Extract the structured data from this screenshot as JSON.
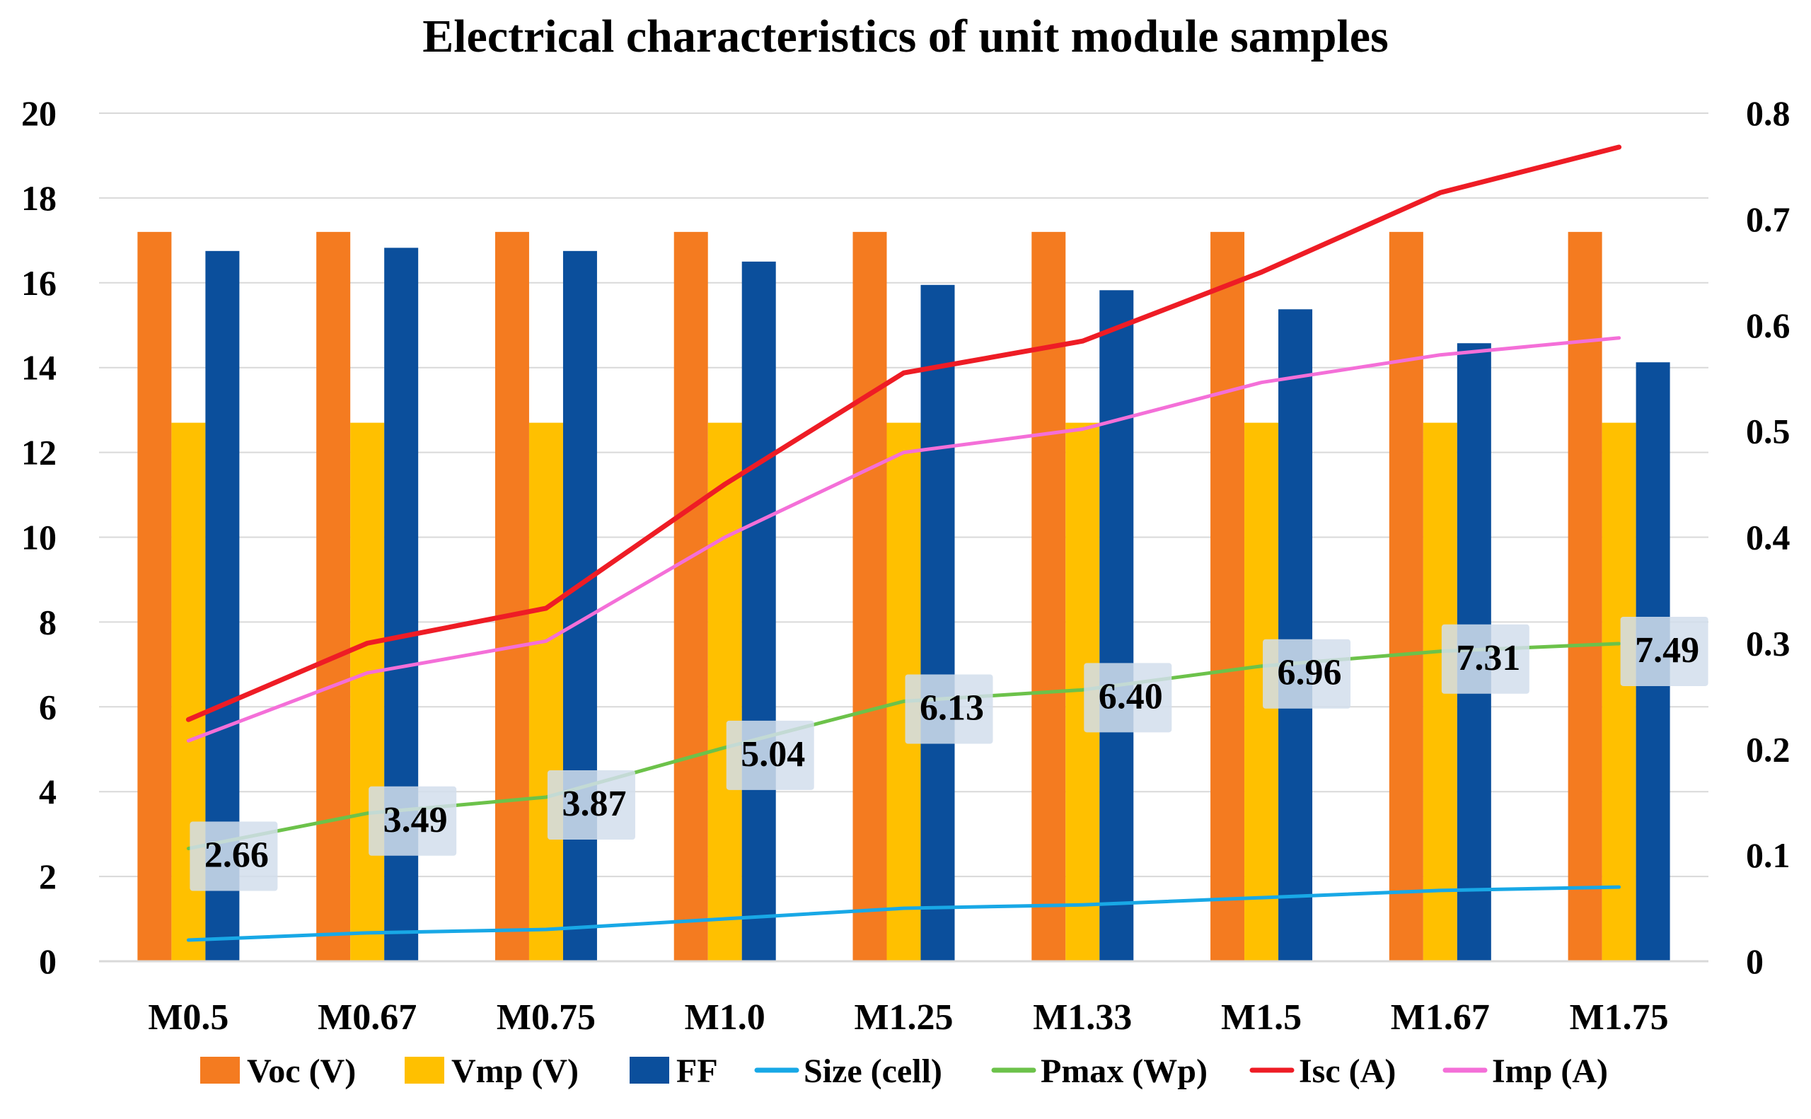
{
  "chart_data": {
    "type": "bar",
    "title": "Electrical characteristics of unit module samples",
    "categories": [
      "M0.5",
      "M0.67",
      "M0.75",
      "M1.0",
      "M1.25",
      "M1.33",
      "M1.5",
      "M1.67",
      "M1.75"
    ],
    "left_axis": {
      "min": 0,
      "max": 20,
      "step": 2,
      "tick_labels": [
        "0",
        "2",
        "4",
        "6",
        "8",
        "10",
        "12",
        "14",
        "16",
        "18",
        "20"
      ]
    },
    "right_axis": {
      "min": 0,
      "max": 0.8,
      "step": 0.1,
      "tick_labels": [
        "0",
        "0.1",
        "0.2",
        "0.3",
        "0.4",
        "0.5",
        "0.6",
        "0.7",
        "0.8"
      ]
    },
    "grid": true,
    "legend_position": "bottom",
    "bar_series": [
      {
        "name": "Voc (V)",
        "color": "#F47B20",
        "axis": "left",
        "values": [
          17.2,
          17.2,
          17.2,
          17.2,
          17.2,
          17.2,
          17.2,
          17.2,
          17.2
        ]
      },
      {
        "name": "Vmp (V)",
        "color": "#FFC000",
        "axis": "left",
        "values": [
          12.7,
          12.7,
          12.7,
          12.7,
          12.7,
          12.7,
          12.7,
          12.7,
          12.7
        ]
      },
      {
        "name": "FF",
        "color": "#0B4F9C",
        "axis": "right",
        "values": [
          0.67,
          0.673,
          0.67,
          0.66,
          0.638,
          0.633,
          0.615,
          0.583,
          0.565
        ]
      }
    ],
    "line_series": [
      {
        "name": "Size (cell)",
        "color": "#18A8E6",
        "axis": "left",
        "values": [
          0.5,
          0.67,
          0.75,
          1.0,
          1.25,
          1.33,
          1.5,
          1.67,
          1.75
        ]
      },
      {
        "name": "Pmax (Wp)",
        "color": "#6CC24A",
        "axis": "left",
        "values": [
          2.66,
          3.49,
          3.87,
          5.04,
          6.13,
          6.4,
          6.96,
          7.31,
          7.49
        ],
        "data_labels": [
          "2.66",
          "3.49",
          "3.87",
          "5.04",
          "6.13",
          "6.40",
          "6.96",
          "7.31",
          "7.49"
        ]
      },
      {
        "name": "Isc (A)",
        "color": "#EE1C25",
        "axis": "right",
        "values": [
          0.228,
          0.3,
          0.333,
          0.45,
          0.555,
          0.585,
          0.65,
          0.725,
          0.768
        ]
      },
      {
        "name": "Imp (A)",
        "color": "#F46FD8",
        "axis": "right",
        "values": [
          0.208,
          0.272,
          0.302,
          0.4,
          0.48,
          0.502,
          0.546,
          0.572,
          0.588
        ]
      }
    ],
    "legend_order": [
      "Voc (V)",
      "Vmp (V)",
      "FF",
      "Size (cell)",
      "Pmax (Wp)",
      "Isc (A)",
      "Imp (A)"
    ]
  }
}
